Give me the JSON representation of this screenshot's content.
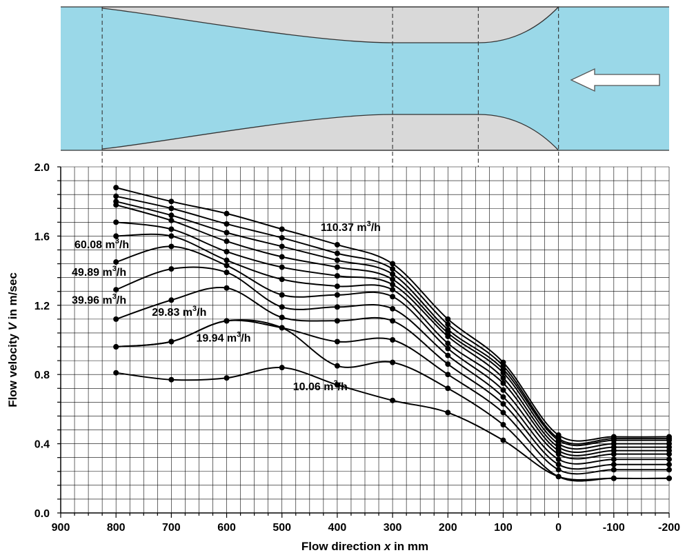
{
  "colors": {
    "channel": "#9ad8e8",
    "body": "#d9d9d9",
    "outline": "#333333",
    "line": "#000000",
    "grid": "#000000"
  },
  "chart_data": {
    "type": "line",
    "xlabel_text": "Flow direction ",
    "xlabel_var": "x",
    "xlabel_unit": " in mm",
    "ylabel_text": "Flow velocity  ",
    "ylabel_var": "V",
    "ylabel_unit": " in m/sec",
    "xlim": [
      900,
      -200
    ],
    "ylim": [
      0.0,
      2.0
    ],
    "x_ticks": [
      "900",
      "800",
      "700",
      "600",
      "500",
      "400",
      "300",
      "200",
      "100",
      "0",
      "-100",
      "-200"
    ],
    "y_ticks": [
      "0.0",
      "0.4",
      "0.8",
      "1.2",
      "1.6",
      "2.0"
    ],
    "grid": true,
    "x": [
      800,
      700,
      600,
      500,
      400,
      300,
      200,
      100,
      0,
      -100,
      -200
    ],
    "series": [
      {
        "name": "110.37 m3/h",
        "values": [
          1.88,
          1.8,
          1.73,
          1.64,
          1.55,
          1.44,
          1.12,
          0.87,
          0.45,
          0.44,
          0.44
        ]
      },
      {
        "values": [
          1.83,
          1.76,
          1.67,
          1.59,
          1.5,
          1.41,
          1.09,
          0.85,
          0.43,
          0.43,
          0.43
        ]
      },
      {
        "values": [
          1.8,
          1.72,
          1.62,
          1.54,
          1.46,
          1.38,
          1.06,
          0.83,
          0.42,
          0.42,
          0.42
        ]
      },
      {
        "values": [
          1.78,
          1.69,
          1.57,
          1.48,
          1.42,
          1.35,
          1.04,
          0.81,
          0.4,
          0.4,
          0.4
        ]
      },
      {
        "values": [
          1.68,
          1.64,
          1.51,
          1.42,
          1.37,
          1.32,
          1.02,
          0.78,
          0.38,
          0.38,
          0.38
        ]
      },
      {
        "name": "60.08 m3/h",
        "values": [
          1.6,
          1.6,
          1.46,
          1.35,
          1.31,
          1.29,
          0.98,
          0.75,
          0.36,
          0.36,
          0.36
        ]
      },
      {
        "name": "49.89 m3/h",
        "values": [
          1.45,
          1.54,
          1.43,
          1.26,
          1.26,
          1.25,
          0.95,
          0.71,
          0.34,
          0.34,
          0.34
        ]
      },
      {
        "name": "39.96 m3/h",
        "values": [
          1.29,
          1.41,
          1.39,
          1.19,
          1.19,
          1.18,
          0.91,
          0.67,
          0.31,
          0.31,
          0.31
        ]
      },
      {
        "name": "29.83 m3/h",
        "values": [
          1.12,
          1.23,
          1.3,
          1.13,
          1.11,
          1.11,
          0.86,
          0.63,
          0.28,
          0.28,
          0.28
        ]
      },
      {
        "name": "19.94 m3/h",
        "values": [
          0.96,
          0.99,
          1.11,
          1.07,
          0.99,
          1.0,
          0.8,
          0.58,
          0.25,
          0.25,
          0.25
        ]
      },
      {
        "values": [
          0.96,
          0.99,
          1.11,
          1.07,
          0.85,
          0.87,
          0.72,
          0.51,
          0.21,
          0.2,
          0.2
        ]
      },
      {
        "name": "10.06 m3/h",
        "values": [
          0.81,
          0.77,
          0.78,
          0.84,
          0.74,
          0.65,
          0.58,
          0.42,
          0.21,
          0.2,
          0.2
        ]
      }
    ],
    "labels": [
      {
        "text": "110.37 m",
        "sup": "3",
        "unit": "/h",
        "x": 430,
        "y": 1.63
      },
      {
        "text": "60.08 m",
        "sup": "3",
        "unit": "/h",
        "x": 875,
        "y": 1.53
      },
      {
        "text": "49.89 m",
        "sup": "3",
        "unit": "/h",
        "x": 880,
        "y": 1.37
      },
      {
        "text": "39.96 m",
        "sup": "3",
        "unit": "/h",
        "x": 880,
        "y": 1.21
      },
      {
        "text": "29.83 m",
        "sup": "3",
        "unit": "/h",
        "x": 735,
        "y": 1.14
      },
      {
        "text": "19.94 m",
        "sup": "3",
        "unit": "/h",
        "x": 655,
        "y": 0.99
      },
      {
        "text": "10.06 m",
        "sup": "3",
        "unit": "/h",
        "x": 480,
        "y": 0.71
      }
    ]
  }
}
